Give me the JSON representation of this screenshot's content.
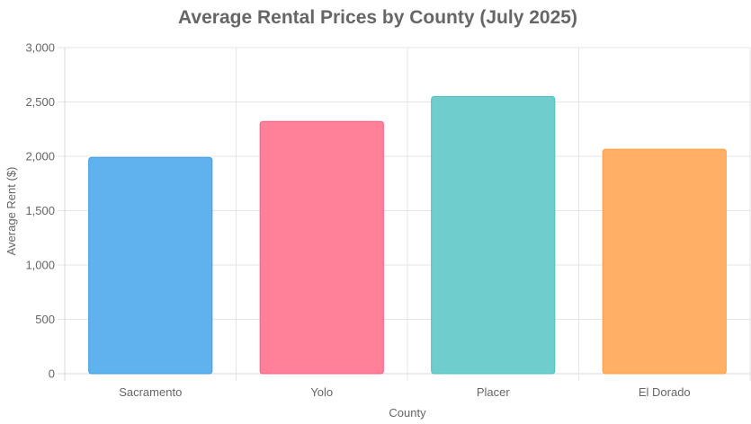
{
  "chart_data": {
    "type": "bar",
    "title": "Average Rental Prices by County (July 2025)",
    "xlabel": "County",
    "ylabel": "Average Rent ($)",
    "categories": [
      "Sacramento",
      "Yolo",
      "Placer",
      "El Dorado"
    ],
    "values": [
      1990,
      2320,
      2550,
      2065
    ],
    "ylim": [
      0,
      3000
    ],
    "yticks": [
      "0",
      "500",
      "1,000",
      "1,500",
      "2,000",
      "2,500",
      "3,000"
    ],
    "grid": true,
    "legend": false,
    "colors": {
      "fills": [
        "#5fb2ee",
        "#ff8098",
        "#70cdcd",
        "#ffb066"
      ],
      "borders": [
        "#3b9fe0",
        "#ff5b7f",
        "#4bc0c0",
        "#ff9f40"
      ]
    }
  }
}
